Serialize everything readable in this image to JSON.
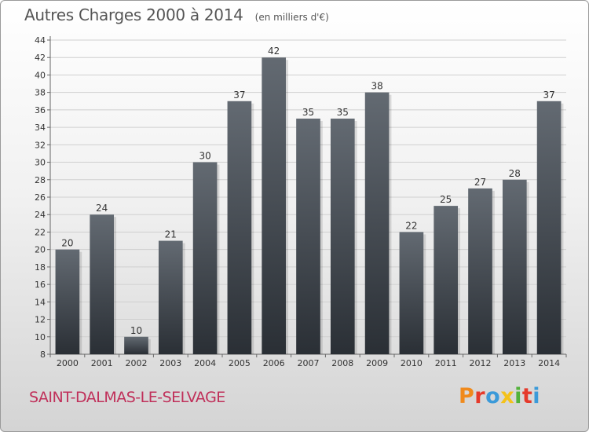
{
  "header": {
    "title": "Autres Charges 2000 à 2014",
    "unit": "(en milliers d'€)"
  },
  "footer": {
    "commune": "SAINT-DALMAS-LE-SELVAGE",
    "brand": "Proxiti"
  },
  "colors": {
    "bar_top": "#636a72",
    "bar_bottom": "#2a2f35",
    "commune": "#c0305a",
    "brand_letters": [
      "#f08a1c",
      "#e53a2b",
      "#3b9ad9",
      "#f4c21a",
      "#52b23a",
      "#e53a2b",
      "#3b9ad9"
    ]
  },
  "chart_data": {
    "type": "bar",
    "title": "Autres Charges 2000 à 2014",
    "xlabel": "",
    "ylabel": "",
    "categories": [
      "2000",
      "2001",
      "2002",
      "2003",
      "2004",
      "2005",
      "2006",
      "2007",
      "2008",
      "2009",
      "2010",
      "2011",
      "2012",
      "2013",
      "2014"
    ],
    "values": [
      20,
      24,
      10,
      21,
      30,
      37,
      42,
      35,
      35,
      38,
      22,
      25,
      27,
      28,
      37
    ],
    "ylim": [
      8,
      44
    ],
    "yticks": [
      8,
      10,
      12,
      14,
      16,
      18,
      20,
      22,
      24,
      26,
      28,
      30,
      32,
      34,
      36,
      38,
      40,
      42,
      44
    ],
    "grid": true,
    "legend": "none"
  }
}
